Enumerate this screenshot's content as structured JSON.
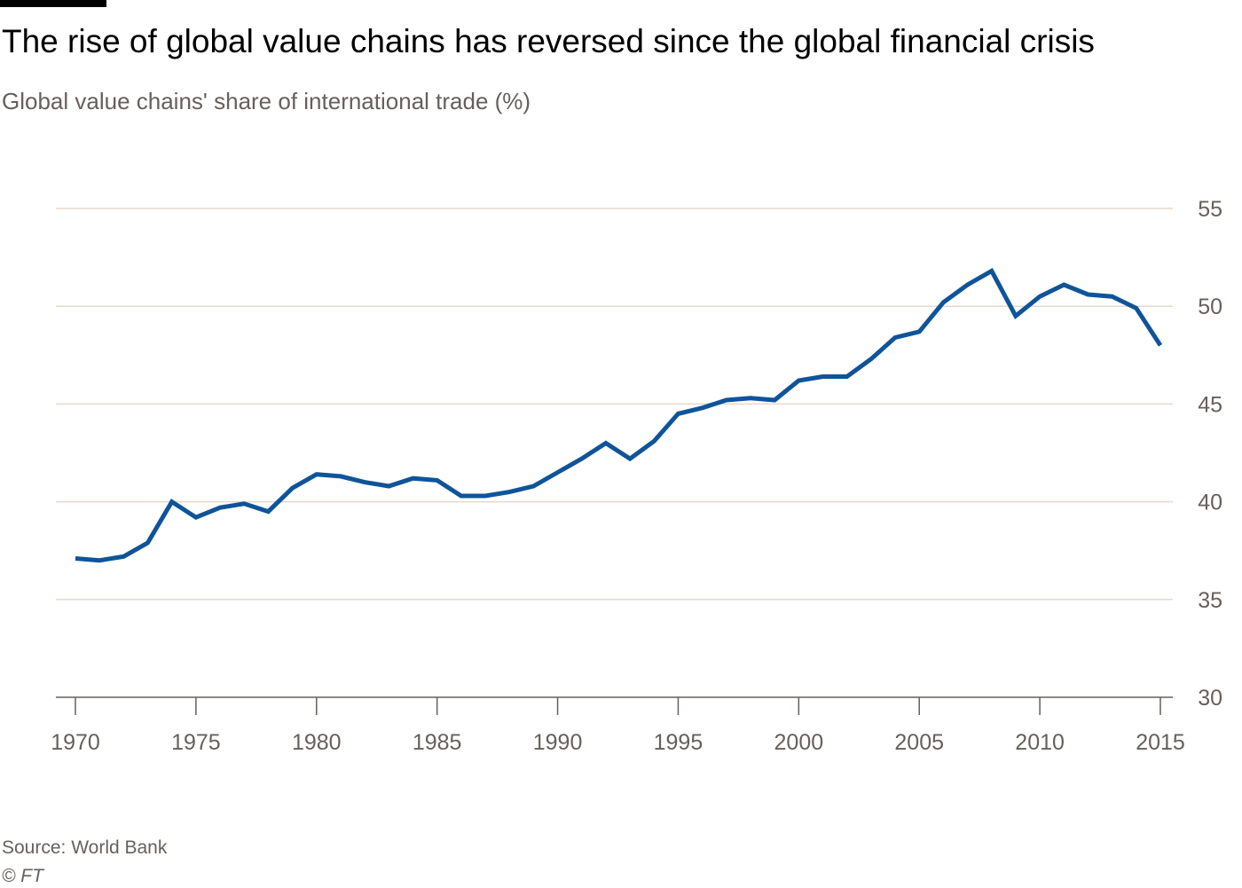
{
  "header": {
    "title": "The rise of global value chains has reversed since the global financial crisis",
    "subtitle": "Global value chains' share of international trade (%)"
  },
  "footer": {
    "source": "Source: World Bank",
    "copyright": "© FT"
  },
  "colors": {
    "line": "#0f5499",
    "grid": "#e6d9ce",
    "axis": "#66605c",
    "text": "#66605c"
  },
  "chart_data": {
    "type": "line",
    "title": "The rise of global value chains has reversed since the global financial crisis",
    "subtitle": "Global value chains' share of international trade (%)",
    "xlabel": "",
    "ylabel": "",
    "ylim": [
      30,
      55
    ],
    "xlim": [
      1970,
      2015
    ],
    "grid": true,
    "y_axis_side": "right",
    "x_ticks": [
      1970,
      1975,
      1980,
      1985,
      1990,
      1995,
      2000,
      2005,
      2010,
      2015
    ],
    "y_ticks": [
      30,
      35,
      40,
      45,
      50,
      55
    ],
    "series": [
      {
        "x": [
          1970,
          1971,
          1972,
          1973,
          1974,
          1975,
          1976,
          1977,
          1978,
          1979,
          1980,
          1981,
          1982,
          1983,
          1984,
          1985,
          1986,
          1987,
          1988,
          1989,
          1990,
          1991,
          1992,
          1993,
          1994,
          1995,
          1996,
          1997,
          1998,
          1999,
          2000,
          2001,
          2002,
          2003,
          2004,
          2005,
          2006,
          2007,
          2008,
          2009,
          2010,
          2011,
          2012,
          2013,
          2014,
          2015
        ],
        "values": [
          37.1,
          37.0,
          37.2,
          37.9,
          40.0,
          39.2,
          39.7,
          39.9,
          39.5,
          40.7,
          41.4,
          41.3,
          41.0,
          40.8,
          41.2,
          41.1,
          40.3,
          40.3,
          40.5,
          40.8,
          41.5,
          42.2,
          43.0,
          42.2,
          43.1,
          44.5,
          44.8,
          45.2,
          45.3,
          45.2,
          46.2,
          46.4,
          46.4,
          47.3,
          48.4,
          48.7,
          50.2,
          51.1,
          51.8,
          49.5,
          50.5,
          51.1,
          50.6,
          50.5,
          49.9,
          48.0
        ]
      }
    ]
  }
}
